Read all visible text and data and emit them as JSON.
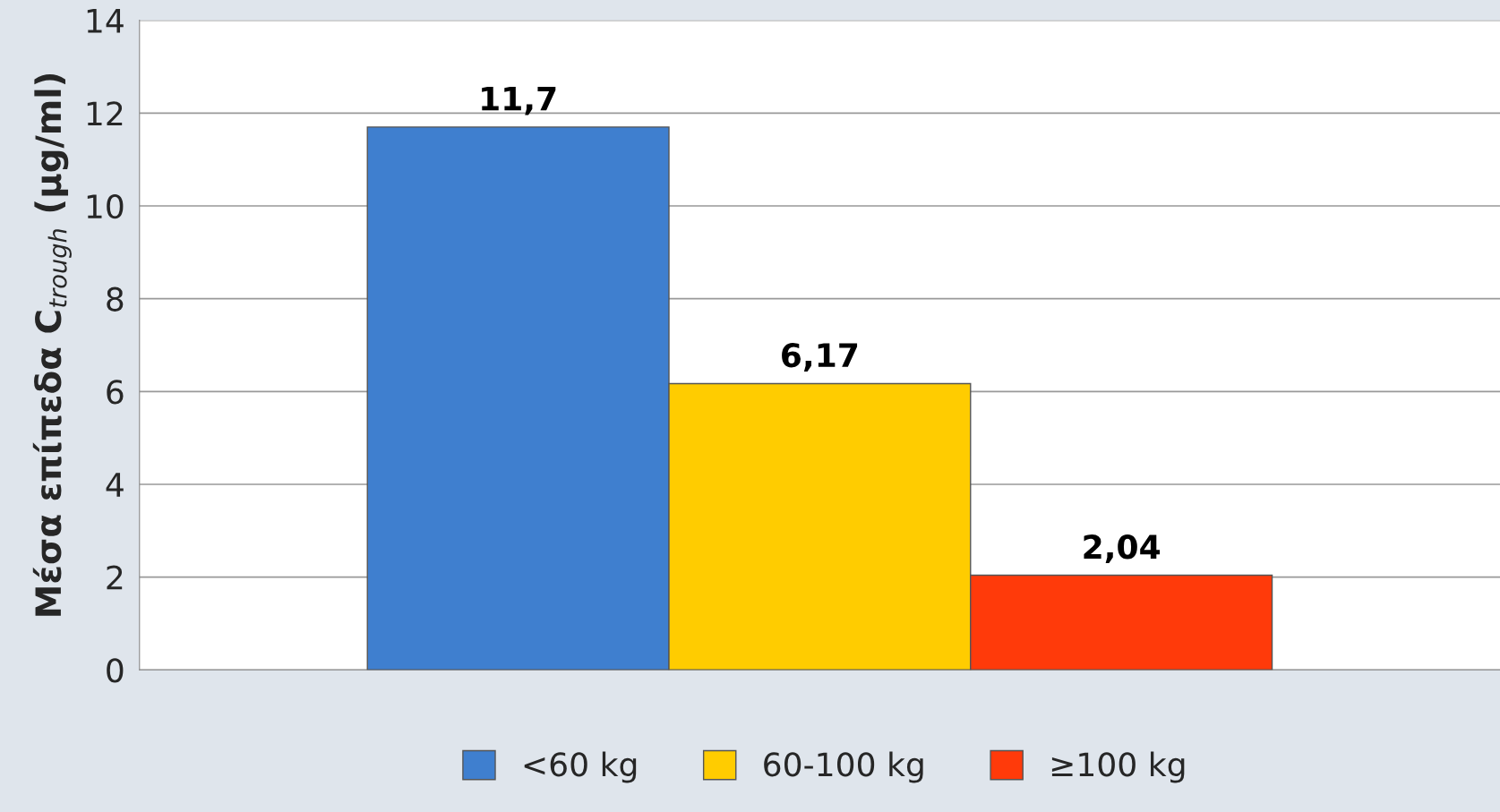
{
  "chart_data": {
    "type": "bar",
    "ylabel": "Μέσα επίπεδα C$_{trough}$ (μg/ml)",
    "categories": [
      null
    ],
    "series": [
      {
        "name": "<60 kg",
        "color": "#3f7fcf",
        "values": [
          11.7
        ],
        "value_labels": [
          "11,7"
        ]
      },
      {
        "name": "60-100 kg",
        "color": "#ffcc00",
        "values": [
          6.17
        ],
        "value_labels": [
          "6,17"
        ]
      },
      {
        "name": "≥100 kg",
        "color": "#ff3a0a",
        "values": [
          2.04
        ],
        "value_labels": [
          "2,04"
        ]
      }
    ],
    "ylim": [
      0,
      14
    ],
    "yticks": [
      0,
      2,
      4,
      6,
      8,
      10,
      12,
      14
    ],
    "grid": "y",
    "legend": "bottom",
    "tick_labels": "y"
  }
}
